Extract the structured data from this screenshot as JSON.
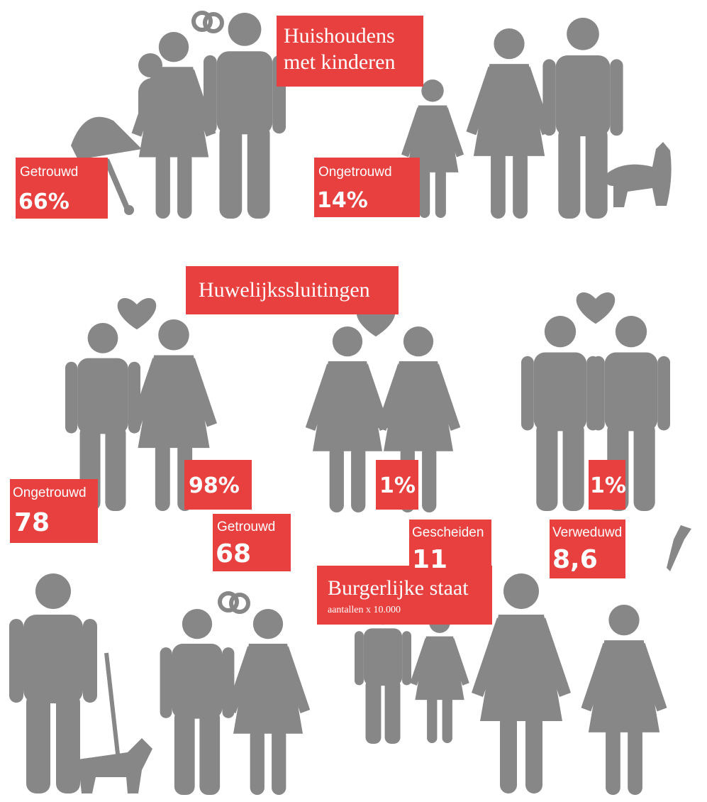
{
  "sections": [
    {
      "title": [
        "Huishoudens",
        "met kinderen"
      ],
      "items": [
        {
          "label": "Getrouwd",
          "value": "66%"
        },
        {
          "label": "Ongetrouwd",
          "value": "14%"
        }
      ]
    },
    {
      "title": [
        "Huwelijkssluitingen"
      ],
      "items": [
        {
          "value": "98%"
        },
        {
          "value": "1%"
        },
        {
          "value": "1%"
        }
      ]
    },
    {
      "title": [
        "Burgerlijke staat"
      ],
      "subtitle": "aantallen x 10.000",
      "items": [
        {
          "label": "Ongetrouwd",
          "value": "78"
        },
        {
          "label": "Getrouwd",
          "value": "68"
        },
        {
          "label": "Gescheiden",
          "value": "11"
        },
        {
          "label": "Verweduwd",
          "value": "8,6"
        }
      ]
    }
  ]
}
